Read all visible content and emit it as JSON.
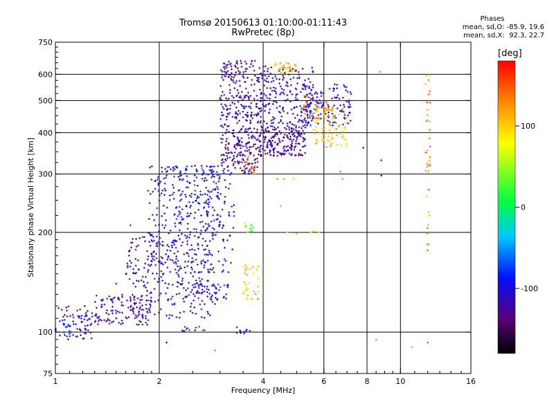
{
  "header": {
    "title_line1": "Tromsø 20150613 01:10:00-01:11:43",
    "title_line2": "RwPretec (8p)",
    "stats_heading": "Phases",
    "stats_o": "mean, sd,O: -85.9, 19.6",
    "stats_x": "mean, sd,X:  92.3, 22.7"
  },
  "chart_data": {
    "type": "scatter",
    "title": "Tromsø 20150613 01:10:00-01:11:43",
    "subtitle": "RwPretec (8p)",
    "xlabel": "Frequency [MHz]",
    "ylabel": "Stationary phase Virtual Height [km]",
    "x_scale": "log",
    "y_scale": "log",
    "xlim": [
      1,
      16
    ],
    "ylim": [
      75,
      750
    ],
    "x_ticks": [
      1,
      2,
      4,
      6,
      8,
      10,
      16
    ],
    "y_ticks": [
      75,
      100,
      200,
      300,
      400,
      500,
      600,
      750
    ],
    "x_gridlines": [
      2,
      4,
      6,
      8,
      10
    ],
    "y_gridlines": [
      100,
      200,
      300,
      400,
      500,
      600
    ],
    "grid": true,
    "colorbar": {
      "unit": "[deg]",
      "ticks": [
        -100,
        0,
        100
      ],
      "range": [
        -180,
        180
      ],
      "placement": "right"
    },
    "point_clusters": [
      {
        "x": [
          1.0,
          1.28
        ],
        "y": [
          95,
          120
        ],
        "phase": -100,
        "n": 80
      },
      {
        "x": [
          1.3,
          1.9
        ],
        "y": [
          105,
          130
        ],
        "phase": -120,
        "n": 120
      },
      {
        "x": [
          1.6,
          2.9
        ],
        "y": [
          110,
          200
        ],
        "phase": -110,
        "n": 260
      },
      {
        "x": [
          1.85,
          3.3
        ],
        "y": [
          150,
          320
        ],
        "phase": -100,
        "n": 280
      },
      {
        "x": [
          2.0,
          3.0
        ],
        "y": [
          200,
          320
        ],
        "phase": -90,
        "n": 120
      },
      {
        "x": [
          2.4,
          3.2
        ],
        "y": [
          125,
          140
        ],
        "phase": -95,
        "n": 50
      },
      {
        "x": [
          3.0,
          3.9
        ],
        "y": [
          300,
          660
        ],
        "phase": -120,
        "n": 380
      },
      {
        "x": [
          3.9,
          5.3
        ],
        "y": [
          340,
          420
        ],
        "phase": -120,
        "n": 200
      },
      {
        "x": [
          3.9,
          5.6
        ],
        "y": [
          420,
          640
        ],
        "phase": -110,
        "n": 220
      },
      {
        "x": [
          5.3,
          7.2
        ],
        "y": [
          420,
          560
        ],
        "phase": -105,
        "n": 120
      },
      {
        "x": [
          5.6,
          7.0
        ],
        "y": [
          360,
          480
        ],
        "phase": 110,
        "n": 90
      },
      {
        "x": [
          4.3,
          5.0
        ],
        "y": [
          600,
          650
        ],
        "phase": 100,
        "n": 30
      },
      {
        "x": [
          5.2,
          6.2
        ],
        "y": [
          440,
          520
        ],
        "phase": 140,
        "n": 25
      },
      {
        "x": [
          3.5,
          3.9
        ],
        "y": [
          125,
          160
        ],
        "phase": 100,
        "n": 40
      },
      {
        "x": [
          3.5,
          3.75
        ],
        "y": [
          200,
          215
        ],
        "phase": 40,
        "n": 12
      },
      {
        "x": [
          3.5,
          3.8
        ],
        "y": [
          300,
          340
        ],
        "phase": 140,
        "n": 15
      },
      {
        "x": [
          11.8,
          12.2
        ],
        "y": [
          170,
          630
        ],
        "phase": 130,
        "n": 40
      },
      {
        "x": [
          2.3,
          2.8
        ],
        "y": [
          100,
          104
        ],
        "phase": -90,
        "n": 12
      },
      {
        "x": [
          3.3,
          3.7
        ],
        "y": [
          99,
          104
        ],
        "phase": -110,
        "n": 10
      }
    ],
    "point_samples": [
      {
        "x": 4.4,
        "y": 290,
        "phase": 140
      },
      {
        "x": 4.6,
        "y": 290,
        "phase": 120
      },
      {
        "x": 4.9,
        "y": 290,
        "phase": 100
      },
      {
        "x": 5.5,
        "y": 200,
        "phase": 100
      },
      {
        "x": 5.6,
        "y": 201,
        "phase": 110
      },
      {
        "x": 5.8,
        "y": 200,
        "phase": 120
      },
      {
        "x": 4.7,
        "y": 200,
        "phase": 110
      },
      {
        "x": 5.0,
        "y": 198,
        "phase": 115
      },
      {
        "x": 4.5,
        "y": 240,
        "phase": 120
      },
      {
        "x": 6.7,
        "y": 305,
        "phase": -40
      },
      {
        "x": 6.8,
        "y": 290,
        "phase": -20
      },
      {
        "x": 7.8,
        "y": 360,
        "phase": -150
      },
      {
        "x": 8.8,
        "y": 330,
        "phase": -80
      },
      {
        "x": 8.8,
        "y": 297,
        "phase": -170
      },
      {
        "x": 8.7,
        "y": 610,
        "phase": 140
      },
      {
        "x": 8.5,
        "y": 95,
        "phase": 140
      },
      {
        "x": 10.8,
        "y": 90,
        "phase": 120
      },
      {
        "x": 12.0,
        "y": 93,
        "phase": 160
      },
      {
        "x": 2.1,
        "y": 93,
        "phase": -150
      },
      {
        "x": 2.9,
        "y": 88,
        "phase": 140
      },
      {
        "x": 1.5,
        "y": 140,
        "phase": -110
      },
      {
        "x": 1.65,
        "y": 210,
        "phase": -70
      }
    ]
  }
}
